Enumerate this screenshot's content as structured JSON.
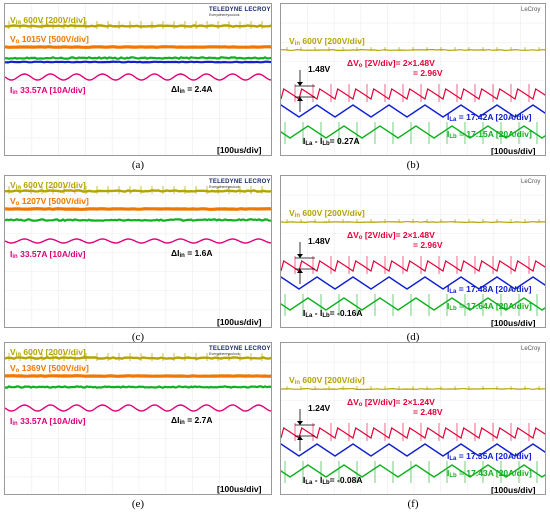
{
  "colors": {
    "vin": "#b5a400",
    "vo_left": "#f07800",
    "vo_right": "#e8003a",
    "iin": "#e0007a",
    "green": "#10b020",
    "blue": "#1020d0",
    "ila": "#1020d0",
    "ilb": "#10b020",
    "black": "#000000"
  },
  "logo": {
    "name": "TELEDYNE LECROY",
    "tagline": "Everywhereyoulook"
  },
  "lecroy": "LeCroy",
  "chart_data": [
    {
      "type": "line",
      "panel": "(a)",
      "labels": {
        "vin": "600V [200V/div]",
        "vo": "1015V [500V/div]",
        "iin": "33.57A [10A/div]",
        "delta_iin": "= 2.4A",
        "timebase": "[100us/div]"
      },
      "values": {
        "vin_V": 600,
        "vo_V": 1015,
        "iin_A": 33.57,
        "delta_iin_A": 2.4
      }
    },
    {
      "type": "line",
      "panel": "(b)",
      "labels": {
        "vin": "600V [200V/div]",
        "dvo": "[2V/div]= 2×1.48V",
        "dvo_result": "= 2.96V",
        "marker": "1.48V",
        "ila": "= 17.42A [20A/div]",
        "ilb": "= 17.15A [20A/div]",
        "diff": "= 0.27A",
        "timebase": "[100us/div]"
      },
      "values": {
        "vin_V": 600,
        "dvo_V": 2.96,
        "ila_A": 17.42,
        "ilb_A": 17.15,
        "diff_A": 0.27
      }
    },
    {
      "type": "line",
      "panel": "(c)",
      "labels": {
        "vin": "600V [200V/div]",
        "vo": "1207V [500V/div]",
        "iin": "33.57A [10A/div]",
        "delta_iin": "= 1.6A",
        "timebase": "[100us/div]"
      },
      "values": {
        "vin_V": 600,
        "vo_V": 1207,
        "iin_A": 33.57,
        "delta_iin_A": 1.6
      }
    },
    {
      "type": "line",
      "panel": "(d)",
      "labels": {
        "vin": "600V [200V/div]",
        "dvo": "[2V/div]= 2×1.48V",
        "dvo_result": "= 2.96V",
        "marker": "1.48V",
        "ila": "= 17.48A [20A/div]",
        "ilb": "= 17.64A [20A/div]",
        "diff": "= -0.16A",
        "timebase": "[100us/div]"
      },
      "values": {
        "vin_V": 600,
        "dvo_V": 2.96,
        "ila_A": 17.48,
        "ilb_A": 17.64,
        "diff_A": -0.16
      }
    },
    {
      "type": "line",
      "panel": "(e)",
      "labels": {
        "vin": "600V [200V/div]",
        "vo": "1369V [500V/div]",
        "iin": "33.57A [10A/div]",
        "delta_iin": "= 2.7A",
        "timebase": "[100us/div]"
      },
      "values": {
        "vin_V": 600,
        "vo_V": 1369,
        "iin_A": 33.57,
        "delta_iin_A": 2.7
      }
    },
    {
      "type": "line",
      "panel": "(f)",
      "labels": {
        "vin": "600V  [200V/div]",
        "dvo": "[2V/div]= 2×1.24V",
        "dvo_result": "= 2.48V",
        "marker": "1.24V",
        "ila": "= 17.35A [20A/div]",
        "ilb": "= 17.43A [20A/div]",
        "diff": "= -0.08A",
        "timebase": "[100us/div]"
      },
      "values": {
        "vin_V": 600,
        "dvo_V": 2.48,
        "ila_A": 17.35,
        "ilb_A": 17.43,
        "diff_A": -0.08
      }
    }
  ]
}
